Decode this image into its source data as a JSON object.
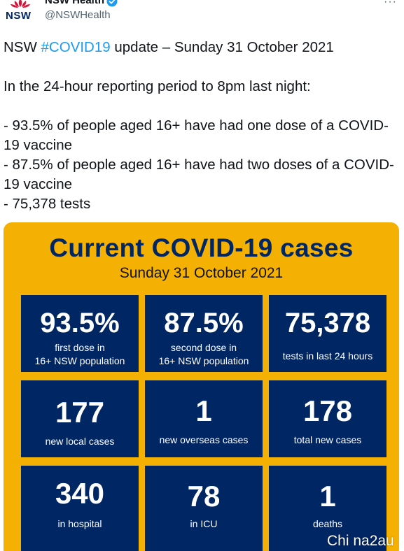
{
  "account": {
    "display_name": "NSW Health",
    "handle": "@NSWHealth",
    "logo_text": "NSW",
    "verified_icon": "verified-badge-icon",
    "more_label": "···"
  },
  "tweet": {
    "prefix": "NSW ",
    "hashtag": "#COVID19",
    "suffix": " update – Sunday 31 October 2021",
    "body": "In the 24-hour reporting period to 8pm last night:\n\n- 93.5% of people aged 16+ have had one dose of a COVID-19 vaccine\n- 87.5% of people aged 16+ have had two doses of a COVID-19 vaccine\n- 75,378 tests"
  },
  "card": {
    "title": "Current COVID-19 cases",
    "date": "Sunday 31 October 2021",
    "background_color": "#F5B103",
    "tile_color": "#002664",
    "tiles": [
      {
        "value": "93.5%",
        "label": "first dose in\n16+ NSW population"
      },
      {
        "value": "87.5%",
        "label": "second dose in\n16+ NSW population"
      },
      {
        "value": "75,378",
        "label": "tests in last 24 hours"
      },
      {
        "value": "177",
        "label": "new local cases"
      },
      {
        "value": "1",
        "label": "new overseas cases"
      },
      {
        "value": "178",
        "label": "total new cases"
      },
      {
        "value": "340",
        "label": "in hospital"
      },
      {
        "value": "78",
        "label": "in ICU"
      },
      {
        "value": "1",
        "label": "deaths"
      }
    ]
  },
  "watermark": "Chi na2au"
}
